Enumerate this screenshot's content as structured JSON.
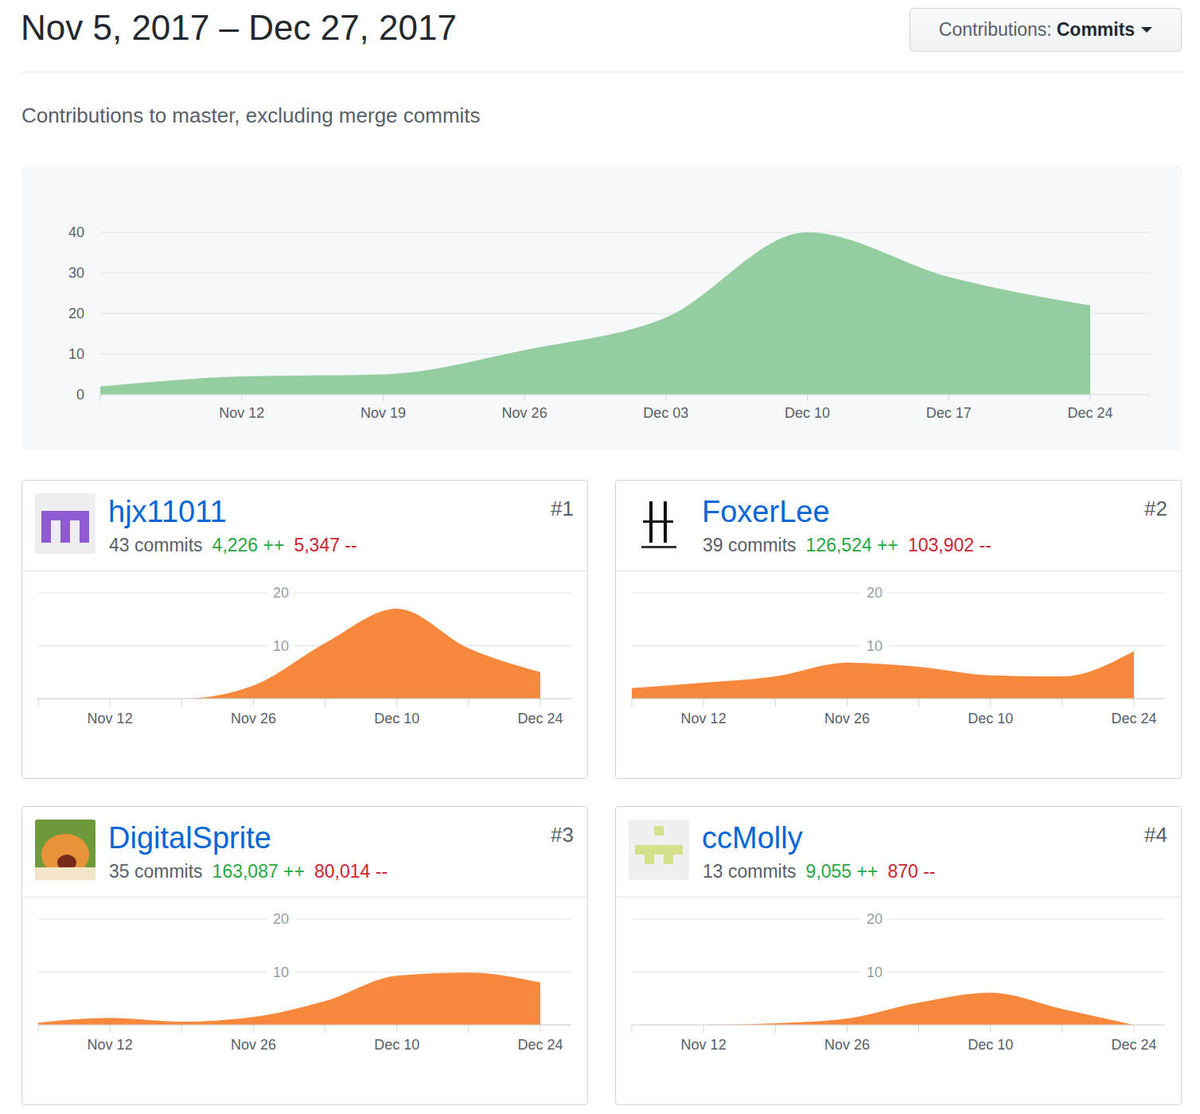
{
  "header": {
    "title": "Nov 5, 2017 – Dec 27, 2017",
    "dropdown": {
      "label": "Contributions:",
      "value": "Commits"
    },
    "subtitle": "Contributions to master, excluding merge commits"
  },
  "contributors": [
    {
      "name": "hjx11011",
      "rank": "#1",
      "commits": "43 commits",
      "additions": "4,226 ++",
      "deletions": "5,347 --"
    },
    {
      "name": "FoxerLee",
      "rank": "#2",
      "commits": "39 commits",
      "additions": "126,524 ++",
      "deletions": "103,902 --"
    },
    {
      "name": "DigitalSprite",
      "rank": "#3",
      "commits": "35 commits",
      "additions": "163,087 ++",
      "deletions": "80,014 --"
    },
    {
      "name": "ccMolly",
      "rank": "#4",
      "commits": "13 commits",
      "additions": "9,055 ++",
      "deletions": "870 --"
    }
  ],
  "chart_data": [
    {
      "type": "area",
      "categories": [
        null,
        "Nov 12",
        "Nov 19",
        "Nov 26",
        "Dec 03",
        "Dec 10",
        "Dec 17",
        "Dec 24"
      ],
      "values": [
        2,
        4.5,
        5,
        11,
        19,
        40,
        29,
        22
      ],
      "color": "#94cea0",
      "ylim": [
        0,
        40
      ],
      "yticks": [
        0,
        10,
        20,
        30,
        40
      ],
      "grid": true
    },
    {
      "type": "area",
      "categories": [
        null,
        "Nov 12",
        null,
        "Nov 26",
        null,
        "Dec 10",
        null,
        "Dec 24"
      ],
      "values": [
        0,
        0,
        0,
        2.5,
        10.5,
        17,
        9.5,
        5
      ],
      "color": "#f7883c",
      "ylim": [
        0,
        20
      ],
      "yticks": [
        10,
        20
      ],
      "grid": true
    },
    {
      "type": "area",
      "categories": [
        null,
        "Nov 12",
        null,
        "Nov 26",
        null,
        "Dec 10",
        null,
        "Dec 24"
      ],
      "values": [
        2,
        3,
        4.2,
        6.8,
        6,
        4.4,
        4.2,
        9
      ],
      "color": "#f7883c",
      "ylim": [
        0,
        20
      ],
      "yticks": [
        10,
        20
      ],
      "grid": true
    },
    {
      "type": "area",
      "categories": [
        null,
        "Nov 12",
        null,
        "Nov 26",
        null,
        "Dec 10",
        null,
        "Dec 24"
      ],
      "values": [
        0.4,
        1.3,
        0.6,
        1.5,
        4.5,
        9.3,
        9.9,
        8
      ],
      "color": "#f7883c",
      "ylim": [
        0,
        20
      ],
      "yticks": [
        10,
        20
      ],
      "grid": true
    },
    {
      "type": "area",
      "categories": [
        null,
        "Nov 12",
        null,
        "Nov 26",
        null,
        "Dec 10",
        null,
        "Dec 24"
      ],
      "values": [
        0,
        0,
        0.3,
        1.2,
        4.2,
        6.1,
        3,
        0
      ],
      "color": "#f7883c",
      "ylim": [
        0,
        20
      ],
      "yticks": [
        10,
        20
      ],
      "grid": true
    }
  ]
}
